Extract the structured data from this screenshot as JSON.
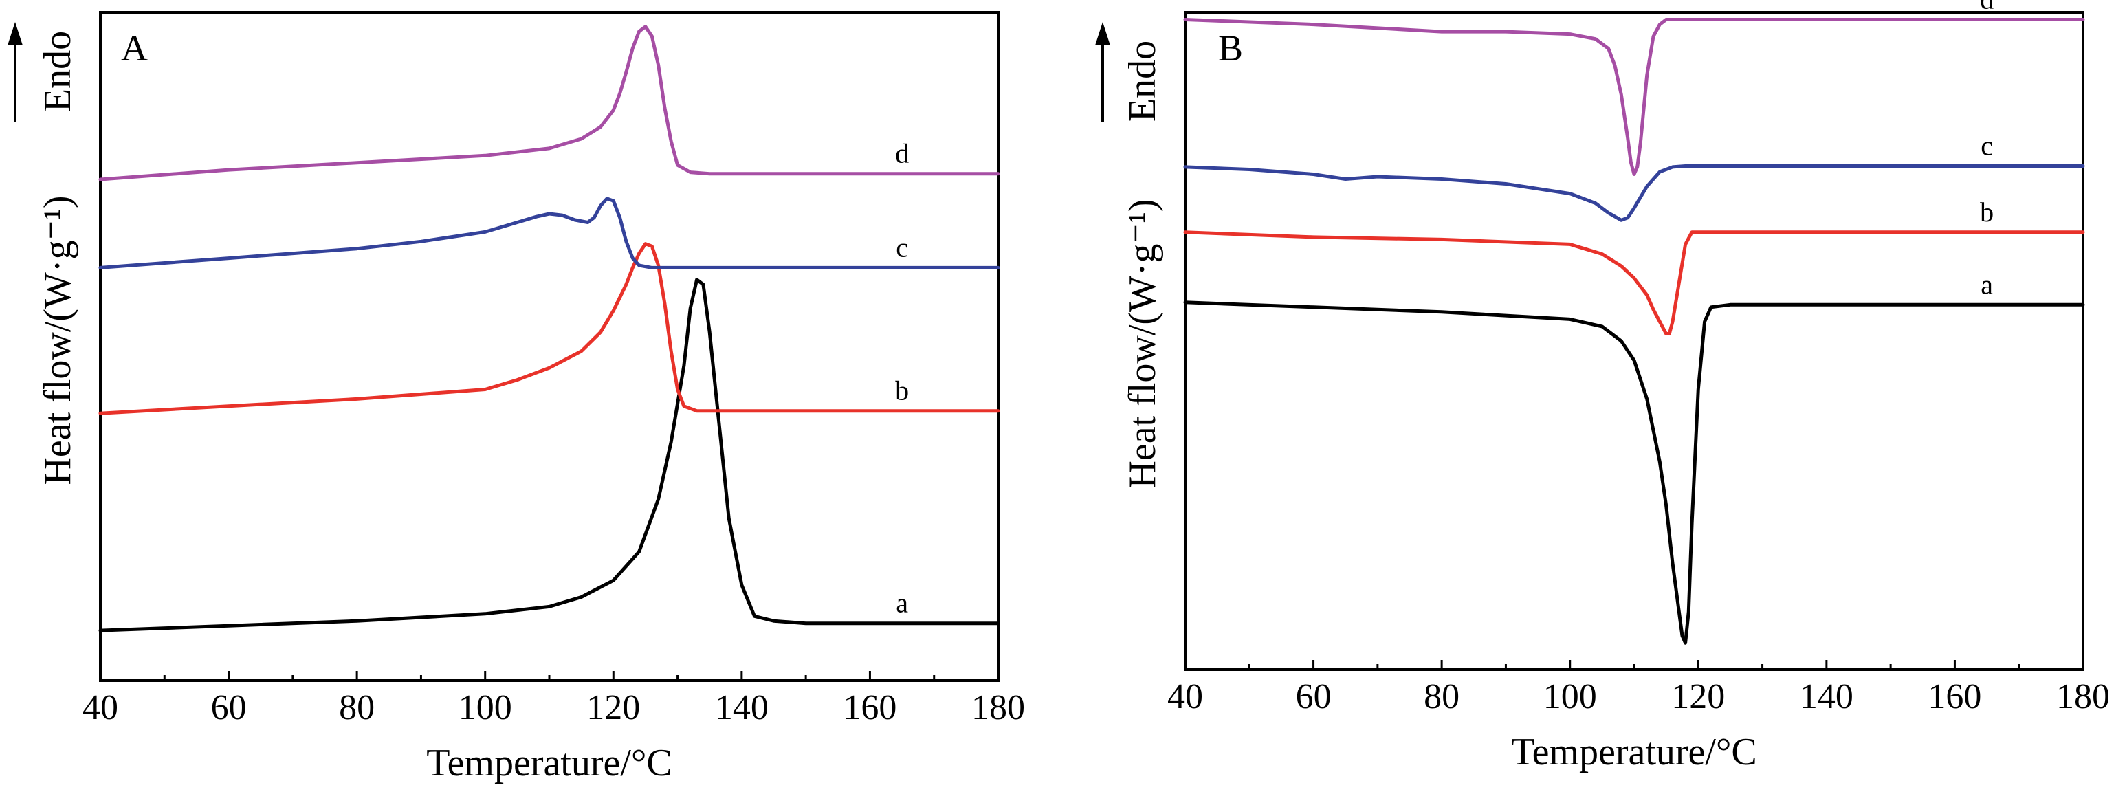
{
  "chart_data": [
    {
      "type": "line",
      "panel_label": "A",
      "xlabel": "Temperature/°C",
      "ylabel": "Heat flow/(W·g⁻¹)",
      "direction_label": "Endo",
      "xlim": [
        40,
        180
      ],
      "xticks": [
        40,
        60,
        80,
        100,
        120,
        140,
        160,
        180
      ],
      "ylim": [
        -1,
        13
      ],
      "grid": false,
      "series": [
        {
          "name": "a",
          "color": "#000000",
          "label_x": 165,
          "x": [
            40,
            60,
            80,
            100,
            110,
            115,
            120,
            124,
            127,
            129,
            131,
            132,
            133,
            134,
            135,
            136,
            137,
            138,
            140,
            142,
            145,
            150,
            160,
            170,
            180
          ],
          "y": [
            0.05,
            0.15,
            0.25,
            0.4,
            0.55,
            0.75,
            1.1,
            1.7,
            2.8,
            4.0,
            5.6,
            6.8,
            7.4,
            7.3,
            6.3,
            5.0,
            3.7,
            2.4,
            1.0,
            0.35,
            0.25,
            0.2,
            0.2,
            0.2,
            0.2
          ]
        },
        {
          "name": "b",
          "color": "#e8322a",
          "label_x": 165,
          "x": [
            40,
            60,
            80,
            100,
            105,
            110,
            115,
            118,
            120,
            122,
            123,
            124,
            125,
            126,
            127,
            128,
            129,
            130,
            131,
            133,
            135,
            140,
            160,
            180
          ],
          "y": [
            4.6,
            4.75,
            4.9,
            5.1,
            5.3,
            5.55,
            5.9,
            6.3,
            6.75,
            7.3,
            7.65,
            7.95,
            8.15,
            8.1,
            7.7,
            6.9,
            5.9,
            5.1,
            4.75,
            4.65,
            4.65,
            4.65,
            4.65,
            4.65
          ]
        },
        {
          "name": "c",
          "color": "#34429a",
          "label_x": 165,
          "x": [
            40,
            60,
            80,
            90,
            100,
            105,
            108,
            110,
            112,
            114,
            116,
            117,
            118,
            119,
            120,
            121,
            122,
            123,
            124,
            126,
            130,
            140,
            160,
            180
          ],
          "y": [
            7.65,
            7.85,
            8.05,
            8.2,
            8.4,
            8.6,
            8.72,
            8.78,
            8.75,
            8.65,
            8.6,
            8.7,
            8.95,
            9.1,
            9.05,
            8.7,
            8.2,
            7.85,
            7.7,
            7.65,
            7.65,
            7.65,
            7.65,
            7.65
          ]
        },
        {
          "name": "d",
          "color": "#a64ea4",
          "label_x": 165,
          "x": [
            40,
            60,
            80,
            100,
            110,
            115,
            118,
            120,
            121,
            122,
            123,
            124,
            125,
            126,
            127,
            128,
            129,
            130,
            132,
            135,
            140,
            160,
            180
          ],
          "y": [
            9.5,
            9.7,
            9.85,
            10.0,
            10.15,
            10.35,
            10.6,
            10.95,
            11.3,
            11.75,
            12.25,
            12.6,
            12.7,
            12.5,
            11.9,
            11.0,
            10.3,
            9.8,
            9.65,
            9.62,
            9.62,
            9.62,
            9.62
          ]
        }
      ]
    },
    {
      "type": "line",
      "panel_label": "B",
      "xlabel": "Temperature/°C",
      "ylabel": "Heat flow/(W·g⁻¹)",
      "direction_label": "Endo",
      "xlim": [
        40,
        180
      ],
      "xticks": [
        40,
        60,
        80,
        100,
        120,
        140,
        160,
        180
      ],
      "ylim": [
        -1,
        12.6
      ],
      "grid": false,
      "series": [
        {
          "name": "a",
          "color": "#000000",
          "label_x": 165,
          "x": [
            40,
            60,
            80,
            100,
            105,
            108,
            110,
            112,
            114,
            115,
            116,
            117,
            117.5,
            118,
            118.5,
            119,
            120,
            121,
            122,
            125,
            140,
            160,
            180
          ],
          "y": [
            6.6,
            6.5,
            6.4,
            6.25,
            6.1,
            5.8,
            5.4,
            4.6,
            3.3,
            2.4,
            1.2,
            0.2,
            -0.3,
            -0.45,
            0.2,
            2.0,
            4.8,
            6.2,
            6.5,
            6.55,
            6.55,
            6.55,
            6.55
          ]
        },
        {
          "name": "b",
          "color": "#e8322a",
          "label_x": 165,
          "x": [
            40,
            60,
            80,
            100,
            105,
            108,
            110,
            112,
            113,
            114,
            115,
            115.5,
            116,
            117,
            118,
            119,
            120,
            125,
            140,
            160,
            180
          ],
          "y": [
            8.05,
            7.95,
            7.9,
            7.8,
            7.6,
            7.35,
            7.1,
            6.75,
            6.45,
            6.2,
            5.95,
            5.95,
            6.2,
            7.0,
            7.8,
            8.05,
            8.05,
            8.05,
            8.05,
            8.05,
            8.05
          ]
        },
        {
          "name": "c",
          "color": "#34429a",
          "label_x": 165,
          "x": [
            40,
            50,
            60,
            65,
            70,
            80,
            90,
            100,
            104,
            106,
            108,
            109,
            110,
            112,
            114,
            116,
            118,
            120,
            125,
            140,
            160,
            180
          ],
          "y": [
            9.4,
            9.35,
            9.25,
            9.15,
            9.2,
            9.15,
            9.05,
            8.85,
            8.65,
            8.45,
            8.3,
            8.35,
            8.55,
            9.0,
            9.3,
            9.4,
            9.42,
            9.42,
            9.42,
            9.42,
            9.42,
            9.42
          ]
        },
        {
          "name": "d",
          "color": "#a64ea4",
          "label_x": 165,
          "x": [
            40,
            60,
            80,
            90,
            100,
            104,
            106,
            107,
            108,
            109,
            109.5,
            110,
            110.5,
            111,
            111.5,
            112,
            113,
            114,
            115,
            120,
            140,
            160,
            180
          ],
          "y": [
            12.45,
            12.35,
            12.2,
            12.2,
            12.15,
            12.05,
            11.85,
            11.5,
            10.9,
            10.0,
            9.5,
            9.25,
            9.4,
            9.9,
            10.6,
            11.3,
            12.1,
            12.35,
            12.45,
            12.45,
            12.45,
            12.45,
            12.45
          ]
        }
      ]
    }
  ]
}
